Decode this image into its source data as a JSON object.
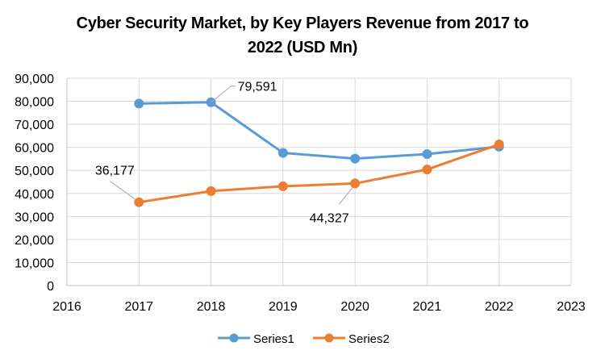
{
  "chart_data": {
    "type": "line",
    "title_lines": [
      "Cyber Security Market, by Key Players Revenue from 2017 to",
      "2022 (USD Mn)"
    ],
    "xlabel": "",
    "ylabel": "",
    "xlim": [
      2016,
      2023
    ],
    "ylim": [
      0,
      90000
    ],
    "x_ticks": [
      2016,
      2017,
      2018,
      2019,
      2020,
      2021,
      2022,
      2023
    ],
    "x_tick_labels": [
      "2016",
      "2017",
      "2018",
      "2019",
      "2020",
      "2021",
      "2022",
      "2023"
    ],
    "y_ticks": [
      0,
      10000,
      20000,
      30000,
      40000,
      50000,
      60000,
      70000,
      80000,
      90000
    ],
    "y_tick_labels": [
      "0",
      "10,000",
      "20,000",
      "30,000",
      "40,000",
      "50,000",
      "60,000",
      "70,000",
      "80,000",
      "90,000"
    ],
    "grid": {
      "horizontal": true,
      "vertical": true
    },
    "legend_position": "bottom",
    "x": [
      2017,
      2018,
      2019,
      2020,
      2021,
      2022
    ],
    "series": [
      {
        "name": "Series1",
        "color": "#5B9BD5",
        "values": [
          79000,
          79591,
          57600,
          55100,
          57100,
          60300
        ]
      },
      {
        "name": "Series2",
        "color": "#ED7D31",
        "values": [
          36177,
          41000,
          43100,
          44327,
          50400,
          61300
        ]
      }
    ],
    "annotations": [
      {
        "series": 0,
        "x": 2018,
        "text": "79,591",
        "placement": "upper-right"
      },
      {
        "series": 1,
        "x": 2017,
        "text": "36,177",
        "placement": "upper-left"
      },
      {
        "series": 1,
        "x": 2020,
        "text": "44,327",
        "placement": "lower-left"
      }
    ]
  }
}
